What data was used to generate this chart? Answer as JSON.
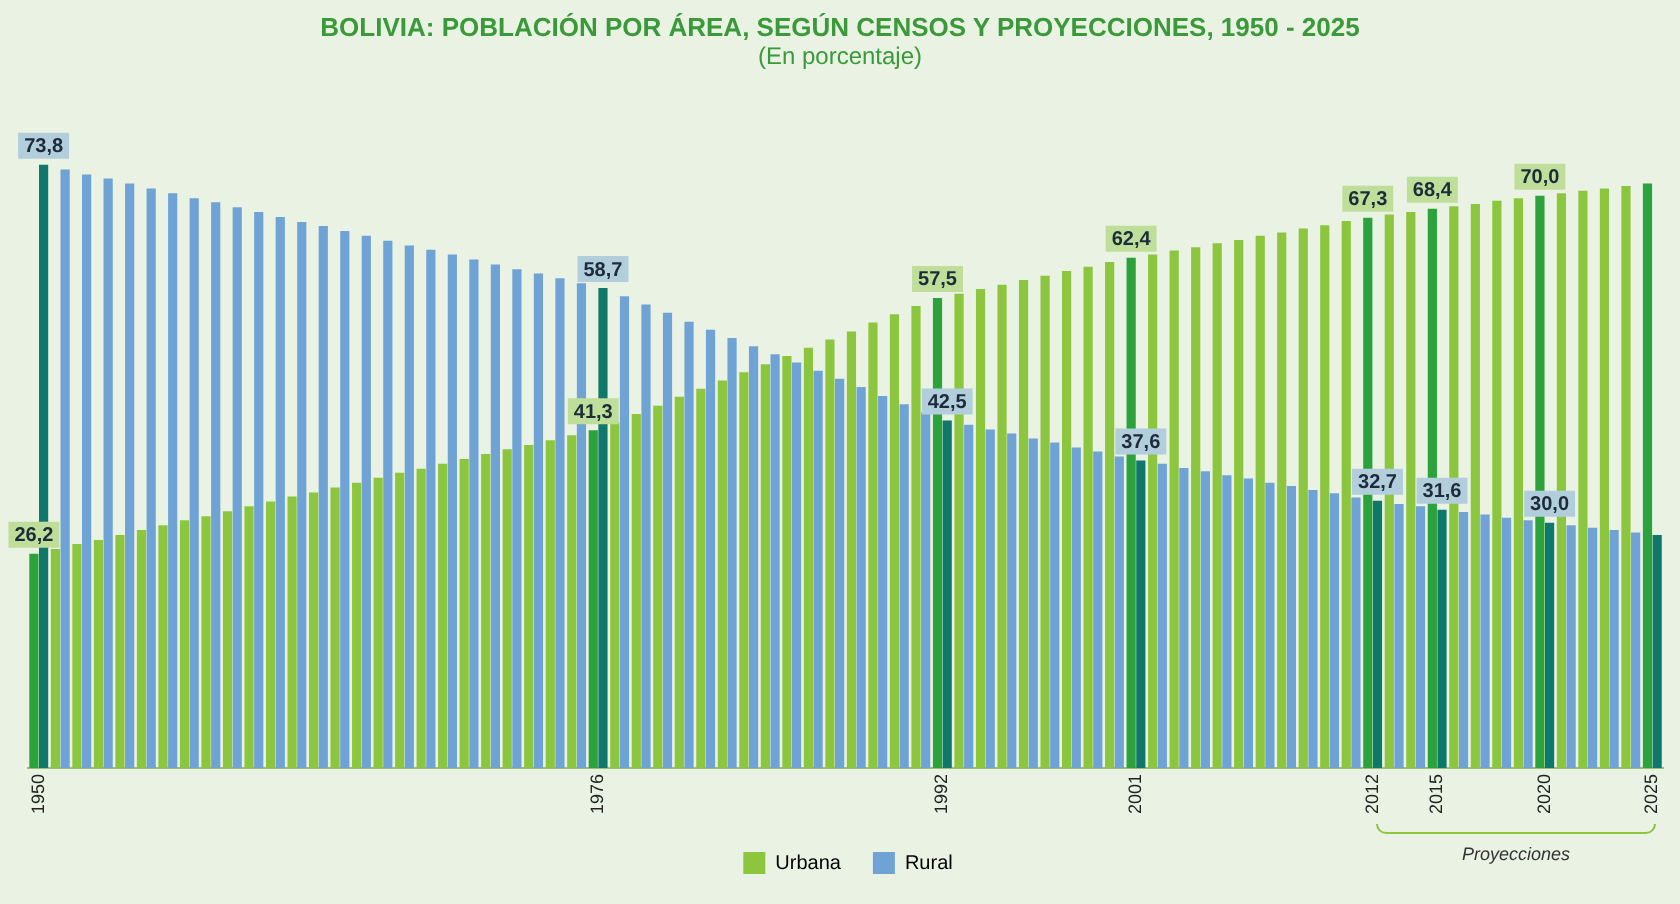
{
  "chart_data": {
    "type": "bar",
    "title": "BOLIVIA: POBLACIÓN POR ÁREA, SEGÚN CENSOS Y PROYECCIONES, 1950 - 2025",
    "subtitle": "(En porcentaje)",
    "categories": [
      "1950",
      null,
      null,
      null,
      null,
      null,
      null,
      null,
      null,
      null,
      null,
      null,
      null,
      null,
      null,
      null,
      null,
      null,
      null,
      null,
      null,
      null,
      null,
      null,
      null,
      null,
      "1976",
      null,
      null,
      null,
      null,
      null,
      null,
      null,
      null,
      null,
      null,
      null,
      null,
      null,
      null,
      null,
      "1992",
      null,
      null,
      null,
      null,
      null,
      null,
      null,
      null,
      "2001",
      null,
      null,
      null,
      null,
      null,
      null,
      null,
      null,
      null,
      null,
      "2012",
      null,
      null,
      "2015",
      null,
      null,
      null,
      null,
      "2020",
      null,
      null,
      null,
      null,
      "2025"
    ],
    "series": [
      {
        "name": "Urbana",
        "color": "#8cc63f",
        "colors": [
          "#2ba23c",
          "#8cc63f",
          "#8cc63f",
          "#8cc63f",
          "#8cc63f",
          "#8cc63f",
          "#8cc63f",
          "#8cc63f",
          "#8cc63f",
          "#8cc63f",
          "#8cc63f",
          "#8cc63f",
          "#8cc63f",
          "#8cc63f",
          "#8cc63f",
          "#8cc63f",
          "#8cc63f",
          "#8cc63f",
          "#8cc63f",
          "#8cc63f",
          "#8cc63f",
          "#8cc63f",
          "#8cc63f",
          "#8cc63f",
          "#8cc63f",
          "#8cc63f",
          "#2ba23c",
          "#8cc63f",
          "#8cc63f",
          "#8cc63f",
          "#8cc63f",
          "#8cc63f",
          "#8cc63f",
          "#8cc63f",
          "#8cc63f",
          "#8cc63f",
          "#8cc63f",
          "#8cc63f",
          "#8cc63f",
          "#8cc63f",
          "#8cc63f",
          "#8cc63f",
          "#2ba23c",
          "#8cc63f",
          "#8cc63f",
          "#8cc63f",
          "#8cc63f",
          "#8cc63f",
          "#8cc63f",
          "#8cc63f",
          "#8cc63f",
          "#2ba23c",
          "#8cc63f",
          "#8cc63f",
          "#8cc63f",
          "#8cc63f",
          "#8cc63f",
          "#8cc63f",
          "#8cc63f",
          "#8cc63f",
          "#8cc63f",
          "#8cc63f",
          "#2ba23c",
          "#8cc63f",
          "#8cc63f",
          "#2ba23c",
          "#8cc63f",
          "#8cc63f",
          "#8cc63f",
          "#8cc63f",
          "#2ba23c",
          "#8cc63f",
          "#8cc63f",
          "#8cc63f",
          "#8cc63f",
          "#2ba23c"
        ],
        "values": [
          26.2,
          26.8,
          27.4,
          27.9,
          28.5,
          29.1,
          29.7,
          30.3,
          30.8,
          31.4,
          32.0,
          32.6,
          33.2,
          33.7,
          34.3,
          34.9,
          35.5,
          36.1,
          36.6,
          37.2,
          37.8,
          38.4,
          39.0,
          39.5,
          40.1,
          40.7,
          41.3,
          42.3,
          43.3,
          44.3,
          45.4,
          46.4,
          47.4,
          48.4,
          49.4,
          50.4,
          51.4,
          52.4,
          53.4,
          54.5,
          55.5,
          56.5,
          57.5,
          58.0,
          58.6,
          59.1,
          59.7,
          60.2,
          60.8,
          61.3,
          61.9,
          62.4,
          62.8,
          63.3,
          63.7,
          64.2,
          64.6,
          65.1,
          65.5,
          66.0,
          66.4,
          66.9,
          67.3,
          67.7,
          68.0,
          68.4,
          68.7,
          69.0,
          69.4,
          69.7,
          70.0,
          70.3,
          70.6,
          70.9,
          71.2,
          71.5
        ],
        "value_labels": [
          "26,2",
          null,
          null,
          null,
          null,
          null,
          null,
          null,
          null,
          null,
          null,
          null,
          null,
          null,
          null,
          null,
          null,
          null,
          null,
          null,
          null,
          null,
          null,
          null,
          null,
          null,
          "41,3",
          null,
          null,
          null,
          null,
          null,
          null,
          null,
          null,
          null,
          null,
          null,
          null,
          null,
          null,
          null,
          "57,5",
          null,
          null,
          null,
          null,
          null,
          null,
          null,
          null,
          "62,4",
          null,
          null,
          null,
          null,
          null,
          null,
          null,
          null,
          null,
          null,
          "67,3",
          null,
          null,
          "68,4",
          null,
          null,
          null,
          null,
          "70,0",
          null,
          null,
          null,
          null,
          null
        ]
      },
      {
        "name": "Rural",
        "color": "#6fa3d6",
        "colors": [
          "#10786b",
          "#6fa3d6",
          "#6fa3d6",
          "#6fa3d6",
          "#6fa3d6",
          "#6fa3d6",
          "#6fa3d6",
          "#6fa3d6",
          "#6fa3d6",
          "#6fa3d6",
          "#6fa3d6",
          "#6fa3d6",
          "#6fa3d6",
          "#6fa3d6",
          "#6fa3d6",
          "#6fa3d6",
          "#6fa3d6",
          "#6fa3d6",
          "#6fa3d6",
          "#6fa3d6",
          "#6fa3d6",
          "#6fa3d6",
          "#6fa3d6",
          "#6fa3d6",
          "#6fa3d6",
          "#6fa3d6",
          "#10786b",
          "#6fa3d6",
          "#6fa3d6",
          "#6fa3d6",
          "#6fa3d6",
          "#6fa3d6",
          "#6fa3d6",
          "#6fa3d6",
          "#6fa3d6",
          "#6fa3d6",
          "#6fa3d6",
          "#6fa3d6",
          "#6fa3d6",
          "#6fa3d6",
          "#6fa3d6",
          "#6fa3d6",
          "#10786b",
          "#6fa3d6",
          "#6fa3d6",
          "#6fa3d6",
          "#6fa3d6",
          "#6fa3d6",
          "#6fa3d6",
          "#6fa3d6",
          "#6fa3d6",
          "#10786b",
          "#6fa3d6",
          "#6fa3d6",
          "#6fa3d6",
          "#6fa3d6",
          "#6fa3d6",
          "#6fa3d6",
          "#6fa3d6",
          "#6fa3d6",
          "#6fa3d6",
          "#6fa3d6",
          "#10786b",
          "#6fa3d6",
          "#6fa3d6",
          "#10786b",
          "#6fa3d6",
          "#6fa3d6",
          "#6fa3d6",
          "#6fa3d6",
          "#10786b",
          "#6fa3d6",
          "#6fa3d6",
          "#6fa3d6",
          "#6fa3d6",
          "#10786b"
        ],
        "values": [
          73.8,
          73.2,
          72.6,
          72.1,
          71.5,
          70.9,
          70.3,
          69.7,
          69.2,
          68.6,
          68.0,
          67.4,
          66.8,
          66.3,
          65.7,
          65.1,
          64.5,
          63.9,
          63.4,
          62.8,
          62.2,
          61.6,
          61.0,
          60.5,
          59.9,
          59.3,
          58.7,
          57.7,
          56.7,
          55.7,
          54.6,
          53.6,
          52.6,
          51.6,
          50.6,
          49.6,
          48.6,
          47.6,
          46.6,
          45.5,
          44.5,
          43.5,
          42.5,
          42.0,
          41.4,
          40.9,
          40.3,
          39.8,
          39.2,
          38.7,
          38.1,
          37.6,
          37.2,
          36.7,
          36.3,
          35.8,
          35.4,
          34.9,
          34.5,
          34.0,
          33.6,
          33.1,
          32.7,
          32.3,
          32.0,
          31.6,
          31.3,
          31.0,
          30.6,
          30.3,
          30.0,
          29.7,
          29.4,
          29.1,
          28.8,
          28.5
        ],
        "value_labels": [
          "73,8",
          null,
          null,
          null,
          null,
          null,
          null,
          null,
          null,
          null,
          null,
          null,
          null,
          null,
          null,
          null,
          null,
          null,
          null,
          null,
          null,
          null,
          null,
          null,
          null,
          null,
          "58,7",
          null,
          null,
          null,
          null,
          null,
          null,
          null,
          null,
          null,
          null,
          null,
          null,
          null,
          null,
          null,
          "42,5",
          null,
          null,
          null,
          null,
          null,
          null,
          null,
          null,
          "37,6",
          null,
          null,
          null,
          null,
          null,
          null,
          null,
          null,
          null,
          null,
          "32,7",
          null,
          null,
          "31,6",
          null,
          null,
          null,
          null,
          "30,0",
          null,
          null,
          null,
          null,
          null
        ]
      }
    ],
    "tick_labels": "x",
    "grid": false,
    "legend": "bottom",
    "annotations": [
      "Proyecciones"
    ]
  }
}
